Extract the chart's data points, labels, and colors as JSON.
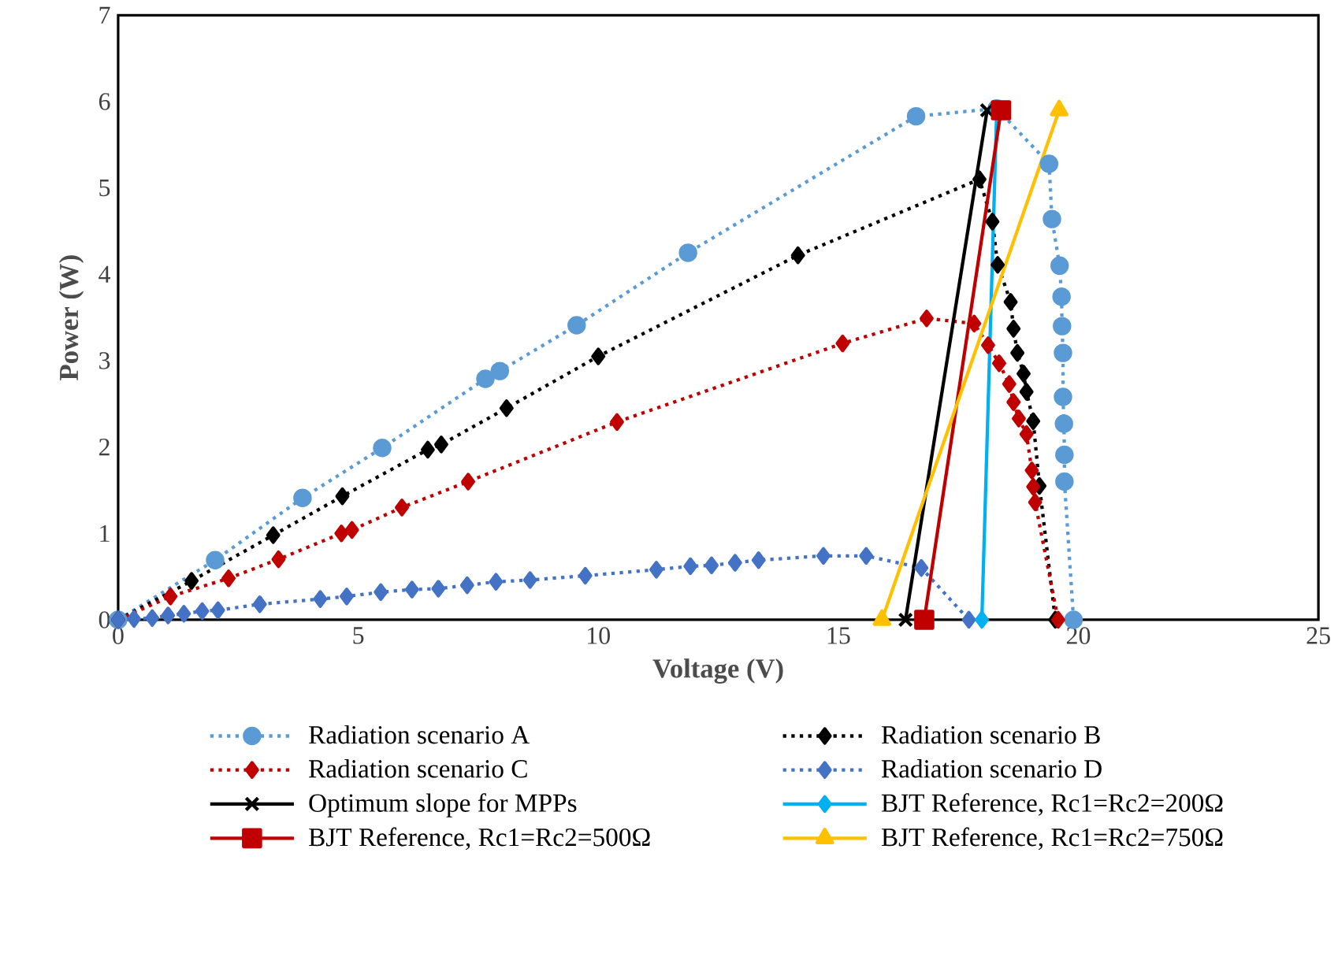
{
  "chart_data": {
    "type": "line",
    "xlabel": "Voltage (V)",
    "ylabel": "Power (W)",
    "xlim": [
      0,
      25
    ],
    "xticks": [
      0,
      5,
      10,
      15,
      20,
      25
    ],
    "ylim": [
      0,
      7
    ],
    "yticks": [
      0,
      1,
      2,
      3,
      4,
      5,
      6,
      7
    ],
    "grid": false,
    "legend": "bottom",
    "series": [
      {
        "name": "Radiation scenario A",
        "color": "#5b9bd5",
        "marker": "circle",
        "line_style": "dotted",
        "x": [
          0,
          2.02,
          3.84,
          5.5,
          7.65,
          7.95,
          9.55,
          11.87,
          16.62,
          18.3,
          19.39,
          19.45,
          19.61,
          19.65,
          19.66,
          19.68,
          19.68,
          19.7,
          19.71,
          19.71,
          19.9
        ],
        "values": [
          0,
          0.69,
          1.41,
          1.99,
          2.79,
          2.88,
          3.41,
          4.25,
          5.83,
          5.92,
          5.28,
          4.64,
          4.1,
          3.74,
          3.4,
          3.09,
          2.58,
          2.27,
          1.91,
          1.6,
          0
        ]
      },
      {
        "name": "Radiation scenario B",
        "color": "#000000",
        "marker": "diamond",
        "line_style": "dotted",
        "x": [
          0,
          1.53,
          3.23,
          4.67,
          6.45,
          6.73,
          8.09,
          10.0,
          14.16,
          17.94,
          18.21,
          18.32,
          18.59,
          18.65,
          18.73,
          18.86,
          18.92,
          19.06,
          19.19,
          19.52
        ],
        "values": [
          0,
          0.45,
          0.98,
          1.43,
          1.97,
          2.03,
          2.45,
          3.05,
          4.22,
          5.1,
          4.61,
          4.11,
          3.68,
          3.37,
          3.09,
          2.85,
          2.64,
          2.3,
          1.55,
          0
        ]
      },
      {
        "name": "Radiation scenario C",
        "color": "#c00000",
        "marker": "diamond",
        "line_style": "dotted",
        "x": [
          0,
          1.09,
          2.3,
          3.34,
          4.65,
          4.87,
          5.91,
          7.29,
          10.39,
          15.09,
          16.84,
          17.83,
          18.12,
          18.35,
          18.56,
          18.65,
          18.76,
          18.92,
          19.03,
          19.06,
          19.1,
          19.58
        ],
        "values": [
          0,
          0.27,
          0.48,
          0.7,
          1.0,
          1.04,
          1.3,
          1.6,
          2.29,
          3.2,
          3.49,
          3.43,
          3.18,
          2.97,
          2.73,
          2.52,
          2.33,
          2.15,
          1.73,
          1.54,
          1.36,
          0
        ]
      },
      {
        "name": "Radiation scenario D",
        "color": "#4472c4",
        "marker": "diamond",
        "line_style": "dotted",
        "x": [
          0,
          0.33,
          0.71,
          1.04,
          1.37,
          1.75,
          2.08,
          2.95,
          4.21,
          4.76,
          5.47,
          6.12,
          6.67,
          7.27,
          7.87,
          8.58,
          9.73,
          11.21,
          11.92,
          12.36,
          12.85,
          13.34,
          14.69,
          15.58,
          16.73,
          17.72
        ],
        "values": [
          0,
          0.01,
          0.02,
          0.05,
          0.07,
          0.1,
          0.11,
          0.18,
          0.24,
          0.27,
          0.32,
          0.35,
          0.36,
          0.4,
          0.44,
          0.46,
          0.51,
          0.58,
          0.62,
          0.63,
          0.66,
          0.69,
          0.74,
          0.74,
          0.6,
          0
        ]
      },
      {
        "name": "Optimum slope for MPPs",
        "color": "#000000",
        "marker": "cross",
        "line_style": "solid",
        "x": [
          16.4,
          18.1
        ],
        "values": [
          0,
          5.9
        ]
      },
      {
        "name": "BJT Reference, Rc1=Rc2=200Ω",
        "color": "#00b0f0",
        "marker": "diamond",
        "line_style": "solid",
        "x": [
          17.99,
          18.3
        ],
        "values": [
          0,
          5.9
        ]
      },
      {
        "name": "BJT Reference, Rc1=Rc2=500Ω",
        "color": "#c00000",
        "marker": "square",
        "line_style": "solid",
        "x": [
          16.79,
          18.39
        ],
        "values": [
          0,
          5.9
        ]
      },
      {
        "name": "BJT Reference, Rc1=Rc2=750Ω",
        "color": "#ffc000",
        "marker": "triangle",
        "line_style": "solid",
        "x": [
          15.91,
          19.6
        ],
        "values": [
          0,
          5.9
        ]
      }
    ]
  }
}
